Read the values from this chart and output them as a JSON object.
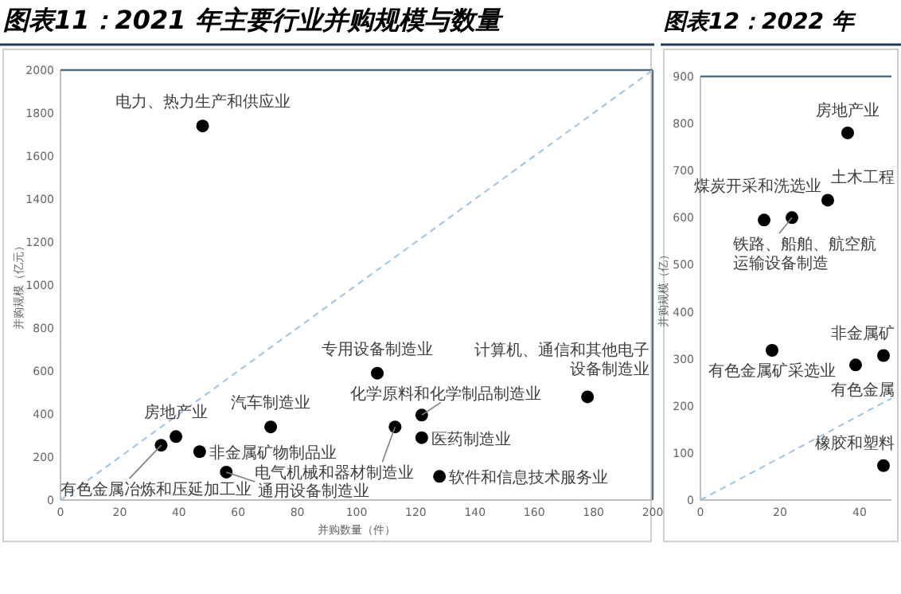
{
  "chart_data": [
    {
      "type": "scatter",
      "title": "图表11：2021 年主要行业并购规模与数量",
      "xlabel": "并购数量（件）",
      "ylabel": "并购规模（亿元）",
      "xlim": [
        0,
        200
      ],
      "ylim": [
        0,
        2000
      ],
      "xticks": [
        0,
        20,
        40,
        60,
        80,
        100,
        120,
        140,
        160,
        180,
        200
      ],
      "yticks": [
        0,
        200,
        400,
        600,
        800,
        1000,
        1200,
        1400,
        1600,
        1800,
        2000
      ],
      "grid": false,
      "series": [
        {
          "color": "#000000",
          "marker": "circle",
          "x": [
            48,
            39,
            34,
            47,
            56,
            71,
            107,
            122,
            113,
            122,
            128,
            178
          ],
          "values": [
            1740,
            295,
            255,
            225,
            130,
            340,
            590,
            395,
            340,
            290,
            110,
            480
          ]
        },
        {
          "type": "line",
          "color": "#9dc3e6",
          "line_style": "dashed",
          "x": [
            0,
            200
          ],
          "values": [
            0,
            2000
          ]
        }
      ],
      "annotations": [
        {
          "text": "电力、热力生产和供应业",
          "x": 48,
          "y": 1740
        },
        {
          "text": "房地产业",
          "x": 39,
          "y": 295
        },
        {
          "text": "有色金属冶炼和压延加工业",
          "x": 34,
          "y": 255
        },
        {
          "text": "非金属矿物制品业",
          "x": 47,
          "y": 225
        },
        {
          "text": "通用设备制造业",
          "x": 56,
          "y": 130
        },
        {
          "text": "汽车制造业",
          "x": 71,
          "y": 340
        },
        {
          "text": "专用设备制造业",
          "x": 107,
          "y": 590
        },
        {
          "text": "化学原料和化学制品制造业",
          "x": 122,
          "y": 395
        },
        {
          "text": "电气机械和器材制造业",
          "x": 113,
          "y": 340
        },
        {
          "text": "医药制造业",
          "x": 122,
          "y": 290
        },
        {
          "text": "软件和信息技术服务业",
          "x": 128,
          "y": 110
        },
        {
          "text": "计算机、通信和其他电子设备制造业",
          "x": 178,
          "y": 480
        }
      ]
    },
    {
      "type": "scatter",
      "title": "图表12：2022 年",
      "ylabel": "并购规模（亿）",
      "xlim": [
        0,
        48
      ],
      "ylim": [
        0,
        900
      ],
      "xticks": [
        0,
        20,
        40
      ],
      "yticks": [
        0,
        100,
        200,
        300,
        400,
        500,
        600,
        700,
        800,
        900
      ],
      "grid": false,
      "series": [
        {
          "color": "#000000",
          "marker": "circle",
          "x": [
            37,
            16,
            32,
            23,
            18,
            46,
            39,
            46
          ],
          "values": [
            780,
            595,
            637,
            600,
            318,
            307,
            287,
            73
          ]
        },
        {
          "type": "line",
          "color": "#9dc3e6",
          "line_style": "dashed",
          "x": [
            0,
            48
          ],
          "values": [
            0,
            216
          ]
        }
      ],
      "annotations": [
        {
          "text": "房地产业",
          "x": 37,
          "y": 780
        },
        {
          "text": "煤炭开采和洗选业",
          "x": 16,
          "y": 595
        },
        {
          "text": "土木工程",
          "x": 32,
          "y": 637
        },
        {
          "text": "铁路、船舶、航空航",
          "x": 23,
          "y": 600
        },
        {
          "text": "运输设备制造",
          "x": 23,
          "y": 600
        },
        {
          "text": "有色金属矿采选业",
          "x": 18,
          "y": 318
        },
        {
          "text": "非金属矿",
          "x": 46,
          "y": 307
        },
        {
          "text": "有色金属",
          "x": 39,
          "y": 287
        },
        {
          "text": "橡胶和塑料",
          "x": 46,
          "y": 73
        }
      ]
    }
  ]
}
